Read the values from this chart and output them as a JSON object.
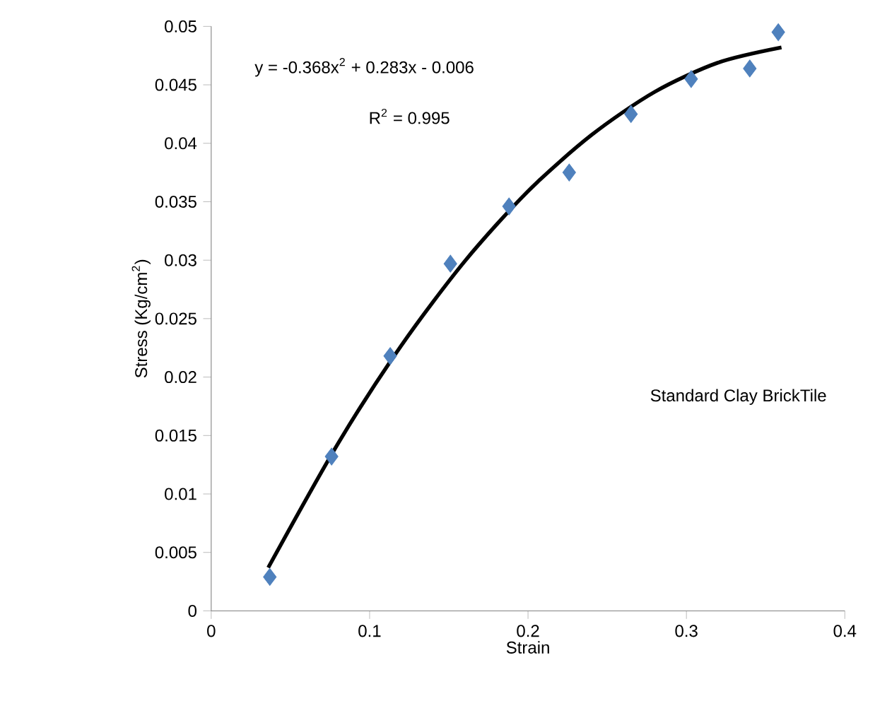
{
  "chart_data": {
    "type": "scatter",
    "xlabel": "Strain",
    "ylabel": "Stress (Kg/cm$^{2}$)",
    "annotations": [
      "y = -0.368x$^{2}$ + 0.283x - 0.006",
      "R$^{2}$ = 0.995",
      "Standard Clay BrickTile"
    ],
    "xlim": [
      0,
      0.4
    ],
    "xticks": [
      0,
      0.1,
      0.2,
      0.3,
      0.4
    ],
    "ylim": [
      0,
      0.05
    ],
    "yticks": [
      0,
      0.005,
      0.01,
      0.015,
      0.02,
      0.025,
      0.03,
      0.035,
      0.04,
      0.045,
      0.05
    ],
    "grid": false,
    "series": [
      {
        "marker": "diamond",
        "color": "#4f81bd",
        "x": [
          0.037,
          0.076,
          0.113,
          0.151,
          0.188,
          0.226,
          0.265,
          0.303,
          0.34,
          0.358
        ],
        "values": [
          0.0029,
          0.0132,
          0.0218,
          0.0297,
          0.0346,
          0.0375,
          0.0425,
          0.0455,
          0.0464,
          0.0495
        ]
      },
      {
        "type": "line",
        "marker": "none",
        "line_style": "solid",
        "color": "#000000",
        "x": [
          0.036,
          0.08,
          0.12,
          0.16,
          0.2,
          0.24,
          0.28,
          0.32,
          0.36
        ],
        "values": [
          0.0037,
          0.0143,
          0.0227,
          0.0299,
          0.0359,
          0.0407,
          0.0444,
          0.0469,
          0.0482
        ]
      }
    ]
  }
}
